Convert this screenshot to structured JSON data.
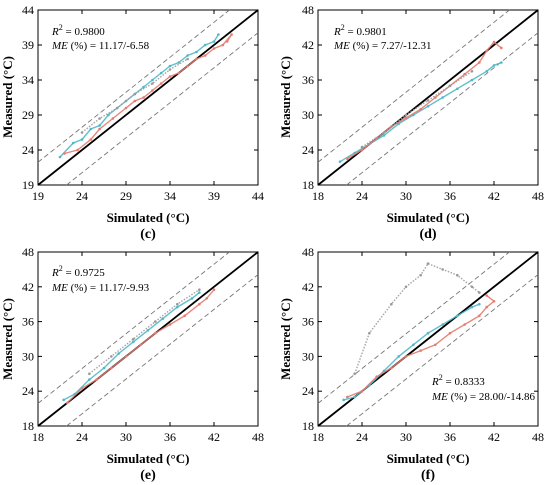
{
  "chart_data": [
    {
      "type": "scatter",
      "panel_label": "(c)",
      "xlabel": "Simulated (°C)",
      "ylabel": "Measured (°C)",
      "xlim": [
        19,
        44
      ],
      "ylim": [
        19,
        44
      ],
      "xticks": [
        19,
        24,
        29,
        34,
        39,
        44
      ],
      "yticks": [
        19,
        24,
        29,
        34,
        39,
        44
      ],
      "r2_label": "R",
      "r2_sup": "2",
      "r2_value": " = 0.9800",
      "me_label": "ME",
      "me_value": " (%) = 11.17/-6.58",
      "stats_position": "top-left",
      "grid": false,
      "reference_lines": [
        "1:1 line",
        "upper error bound",
        "lower error bound"
      ],
      "series_colors": [
        "#4fb8c8",
        "#e57a6e",
        "#9a9a9a"
      ],
      "series": [
        {
          "points": [
            [
              21.5,
              23
            ],
            [
              23,
              25
            ],
            [
              24,
              25.5
            ],
            [
              25,
              27
            ],
            [
              26,
              27.5
            ],
            [
              27,
              29
            ],
            [
              28,
              30
            ],
            [
              29,
              31
            ],
            [
              30,
              32
            ],
            [
              31,
              33
            ],
            [
              32,
              34
            ],
            [
              33,
              35
            ],
            [
              34,
              36
            ],
            [
              35,
              36.5
            ],
            [
              36,
              37.5
            ],
            [
              37,
              38
            ],
            [
              38,
              39
            ],
            [
              39,
              39.5
            ],
            [
              39.5,
              40.5
            ]
          ]
        },
        {
          "points": [
            [
              22,
              23.5
            ],
            [
              23.5,
              24
            ],
            [
              25,
              25.5
            ],
            [
              26,
              27
            ],
            [
              27.5,
              28.5
            ],
            [
              29,
              30
            ],
            [
              30,
              31
            ],
            [
              31,
              31.5
            ],
            [
              32,
              32.5
            ],
            [
              33,
              33.5
            ],
            [
              34,
              34.5
            ],
            [
              35,
              35
            ],
            [
              36,
              36
            ],
            [
              37,
              37
            ],
            [
              38,
              37.5
            ],
            [
              39,
              38.5
            ],
            [
              40,
              39
            ],
            [
              41,
              40.5
            ],
            [
              40.5,
              39.5
            ]
          ]
        },
        {
          "points": [
            [
              24,
              26.5
            ],
            [
              26,
              28.5
            ],
            [
              28,
              30
            ],
            [
              30,
              32
            ],
            [
              32,
              33.5
            ],
            [
              34,
              35.5
            ],
            [
              36,
              37
            ]
          ]
        }
      ]
    },
    {
      "type": "scatter",
      "panel_label": "(d)",
      "xlabel": "Simulated (°C)",
      "ylabel": "Measured (°C)",
      "xlim": [
        18,
        48
      ],
      "ylim": [
        18,
        48
      ],
      "xticks": [
        18,
        24,
        30,
        36,
        42,
        48
      ],
      "yticks": [
        18,
        24,
        30,
        36,
        42,
        48
      ],
      "r2_label": "R",
      "r2_sup": "2",
      "r2_value": " = 0.9801",
      "me_label": "ME",
      "me_value": " (%) = 7.27/-12.31",
      "stats_position": "top-left",
      "grid": false,
      "reference_lines": [
        "1:1 line",
        "upper error bound",
        "lower error bound"
      ],
      "series_colors": [
        "#4fb8c8",
        "#e57a6e",
        "#9a9a9a"
      ],
      "series": [
        {
          "points": [
            [
              21,
              22
            ],
            [
              23,
              23.5
            ],
            [
              25,
              25
            ],
            [
              27,
              26.5
            ],
            [
              29,
              28.5
            ],
            [
              31,
              30
            ],
            [
              33,
              31.5
            ],
            [
              35,
              33
            ],
            [
              37,
              34.5
            ],
            [
              39,
              36
            ],
            [
              41,
              37.5
            ],
            [
              42,
              38.5
            ],
            [
              43,
              39
            ]
          ]
        },
        {
          "points": [
            [
              22,
              22.5
            ],
            [
              24,
              24
            ],
            [
              26,
              26
            ],
            [
              28,
              28
            ],
            [
              30,
              29.5
            ],
            [
              32,
              31
            ],
            [
              34,
              33
            ],
            [
              36,
              35
            ],
            [
              38,
              37
            ],
            [
              40,
              39
            ],
            [
              41,
              41
            ],
            [
              42,
              42.5
            ],
            [
              43,
              41.5
            ]
          ]
        },
        {
          "points": [
            [
              24,
              24.5
            ],
            [
              27,
              27
            ],
            [
              30,
              30
            ],
            [
              33,
              32.5
            ],
            [
              36,
              35
            ],
            [
              39,
              37.5
            ]
          ]
        }
      ]
    },
    {
      "type": "scatter",
      "panel_label": "(e)",
      "xlabel": "Simulated (°C)",
      "ylabel": "Measured (°C)",
      "xlim": [
        18,
        48
      ],
      "ylim": [
        18,
        48
      ],
      "xticks": [
        18,
        24,
        30,
        36,
        42,
        48
      ],
      "yticks": [
        18,
        24,
        30,
        36,
        42,
        48
      ],
      "r2_label": "R",
      "r2_sup": "2",
      "r2_value": " = 0.9725",
      "me_label": "ME",
      "me_value": " (%) = 11.17/-9.93",
      "stats_position": "top-left",
      "grid": false,
      "reference_lines": [
        "1:1 line",
        "upper error bound",
        "lower error bound"
      ],
      "series_colors": [
        "#4fb8c8",
        "#e57a6e",
        "#9a9a9a"
      ],
      "series": [
        {
          "points": [
            [
              21.5,
              22.5
            ],
            [
              23,
              23.5
            ],
            [
              25,
              26
            ],
            [
              27,
              28
            ],
            [
              29,
              30.5
            ],
            [
              31,
              32.5
            ],
            [
              33,
              34.5
            ],
            [
              35,
              36.5
            ],
            [
              37,
              38.5
            ],
            [
              39,
              40
            ],
            [
              40,
              41
            ]
          ]
        },
        {
          "points": [
            [
              22,
              22
            ],
            [
              24,
              24.5
            ],
            [
              26,
              26
            ],
            [
              28,
              28
            ],
            [
              30,
              30
            ],
            [
              32,
              32
            ],
            [
              34,
              34
            ],
            [
              36,
              35.5
            ],
            [
              38,
              37
            ],
            [
              40,
              39
            ],
            [
              41,
              40
            ],
            [
              42,
              41.5
            ]
          ]
        },
        {
          "points": [
            [
              25,
              27
            ],
            [
              28,
              30
            ],
            [
              31,
              33
            ],
            [
              34,
              36
            ],
            [
              37,
              39
            ],
            [
              40,
              41.5
            ]
          ]
        }
      ]
    },
    {
      "type": "scatter",
      "panel_label": "(f)",
      "xlabel": "Simulated (°C)",
      "ylabel": "Measured (°C)",
      "xlim": [
        18,
        48
      ],
      "ylim": [
        18,
        48
      ],
      "xticks": [
        18,
        24,
        30,
        36,
        42,
        48
      ],
      "yticks": [
        18,
        24,
        30,
        36,
        42,
        48
      ],
      "r2_label": "R",
      "r2_sup": "2",
      "r2_value": " = 0.8333",
      "me_label": "ME",
      "me_value": " (%) = 28.00/-14.86",
      "stats_position": "bottom-right",
      "grid": false,
      "reference_lines": [
        "1:1 line",
        "upper error bound",
        "lower error bound"
      ],
      "series_colors": [
        "#4fb8c8",
        "#e57a6e",
        "#9a9a9a"
      ],
      "series": [
        {
          "points": [
            [
              21.5,
              22.5
            ],
            [
              23,
              23
            ],
            [
              25,
              25
            ],
            [
              27,
              27.5
            ],
            [
              29,
              30
            ],
            [
              31,
              32
            ],
            [
              33,
              34
            ],
            [
              35,
              35.5
            ],
            [
              37,
              37
            ],
            [
              39,
              38.5
            ],
            [
              40,
              39
            ]
          ]
        },
        {
          "points": [
            [
              22,
              23
            ],
            [
              24,
              24
            ],
            [
              26,
              26.5
            ],
            [
              28,
              28
            ],
            [
              30,
              30
            ],
            [
              32,
              31
            ],
            [
              34,
              32
            ],
            [
              36,
              34
            ],
            [
              38,
              35.5
            ],
            [
              40,
              37
            ],
            [
              41,
              38.5
            ],
            [
              42,
              39.5
            ],
            [
              41,
              40.5
            ]
          ]
        },
        {
          "points": [
            [
              23,
              27
            ],
            [
              25,
              34
            ],
            [
              28,
              39
            ],
            [
              30,
              42
            ],
            [
              32,
              44
            ],
            [
              33,
              46
            ],
            [
              35,
              45
            ],
            [
              37,
              44
            ],
            [
              39,
              42
            ],
            [
              40,
              41
            ]
          ]
        }
      ]
    }
  ]
}
